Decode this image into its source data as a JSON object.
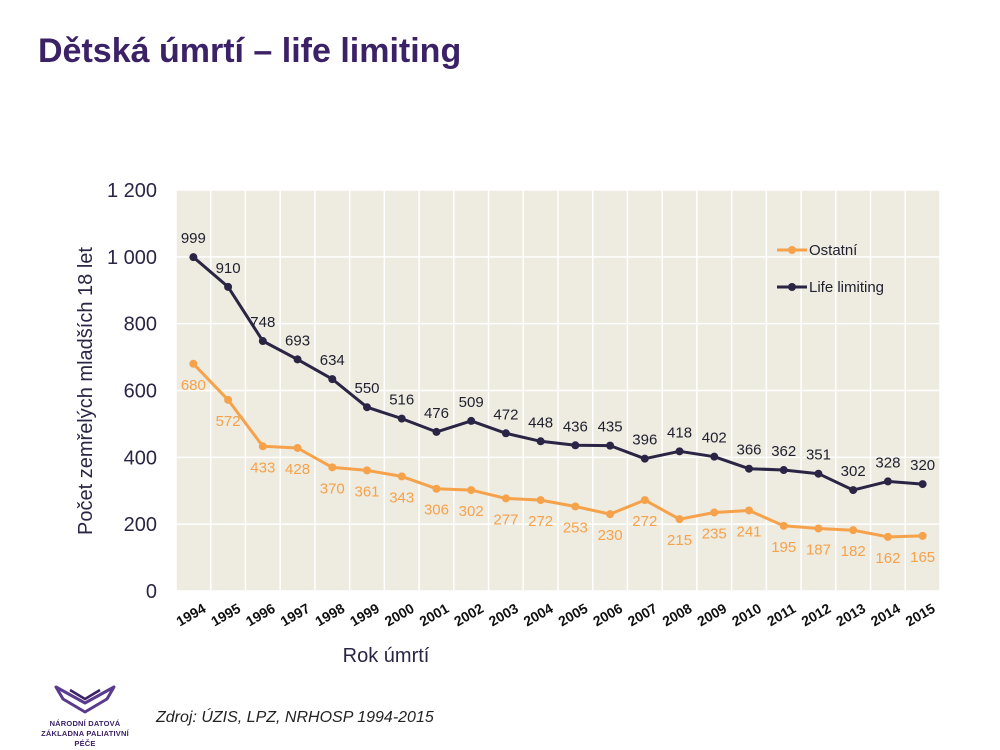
{
  "slide": {
    "title": "Dětská úmrtí – life limiting",
    "source": "Zdroj: ÚZIS, LPZ, NRHOSP 1994-2015",
    "logo": {
      "line1": "NÁRODNÍ DATOVÁ",
      "line2": "ZÁKLADNA PALIATIVNÍ PÉČE"
    }
  },
  "chart_data": {
    "type": "line",
    "xlabel": "Rok úmrtí",
    "ylabel": "Počet zemřelých mladších 18 let",
    "ylim": [
      0,
      1200
    ],
    "yticks": [
      0,
      200,
      400,
      600,
      800,
      1000,
      1200
    ],
    "ytick_labels": [
      "0",
      "200",
      "400",
      "600",
      "800",
      "1 000",
      "1 200"
    ],
    "grid": true,
    "legend_position": "top-right",
    "categories": [
      "1994",
      "1995",
      "1996",
      "1997",
      "1998",
      "1999",
      "2000",
      "2001",
      "2002",
      "2003",
      "2004",
      "2005",
      "2006",
      "2007",
      "2008",
      "2009",
      "2010",
      "2011",
      "2012",
      "2013",
      "2014",
      "2015"
    ],
    "series": [
      {
        "name": "Ostatní",
        "color": "#f5a24b",
        "label_position": "below",
        "values": [
          680,
          572,
          433,
          428,
          370,
          361,
          343,
          306,
          302,
          277,
          272,
          253,
          230,
          272,
          215,
          235,
          241,
          195,
          187,
          182,
          162,
          165
        ]
      },
      {
        "name": "Life limiting",
        "color": "#2a2544",
        "label_position": "above",
        "values": [
          999,
          910,
          748,
          693,
          634,
          550,
          516,
          476,
          509,
          472,
          448,
          436,
          435,
          396,
          418,
          402,
          366,
          362,
          351,
          302,
          328,
          320
        ]
      }
    ],
    "colors": {
      "plot_background": "#eeebe0",
      "grid": "#ffffff",
      "axis_text": "#2a2544"
    }
  }
}
